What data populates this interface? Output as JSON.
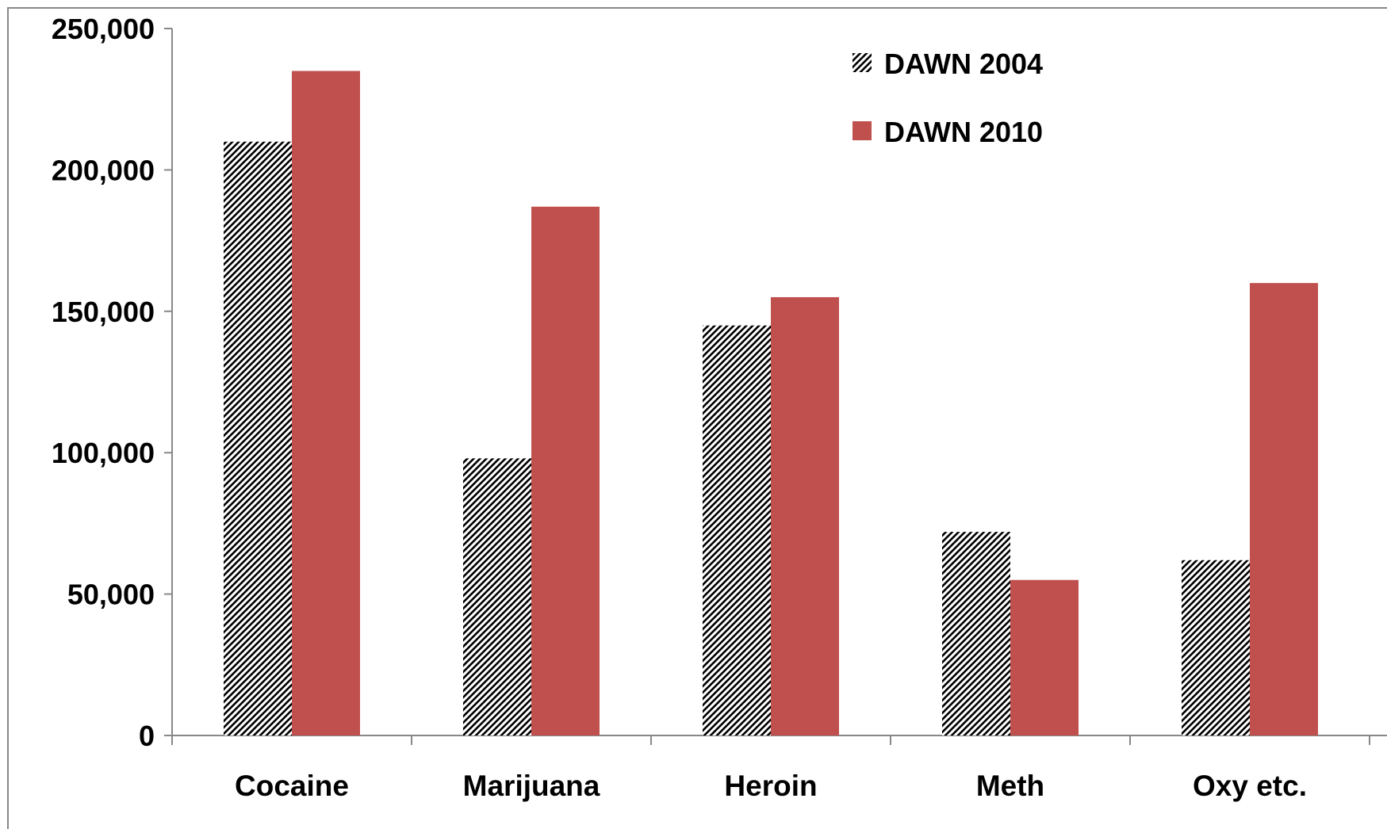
{
  "chart_data": {
    "type": "bar",
    "categories": [
      "Cocaine",
      "Marijuana",
      "Heroin",
      "Meth",
      "Oxy etc."
    ],
    "series": [
      {
        "name": "DAWN 2004",
        "values": [
          210000,
          98000,
          145000,
          72000,
          62000
        ],
        "color": "#000000",
        "pattern": "diagonal-hatch"
      },
      {
        "name": "DAWN 2010",
        "values": [
          235000,
          187000,
          155000,
          55000,
          160000
        ],
        "color": "#C0504D",
        "pattern": "solid"
      }
    ],
    "ylim": [
      0,
      250000
    ],
    "yticks": [
      0,
      50000,
      100000,
      150000,
      200000,
      250000
    ],
    "ytick_labels": [
      "0",
      "50,000",
      "100,000",
      "150,000",
      "200,000",
      "250,000"
    ],
    "grid": false,
    "legend_position": "top-right",
    "title": "",
    "xlabel": "",
    "ylabel": ""
  }
}
